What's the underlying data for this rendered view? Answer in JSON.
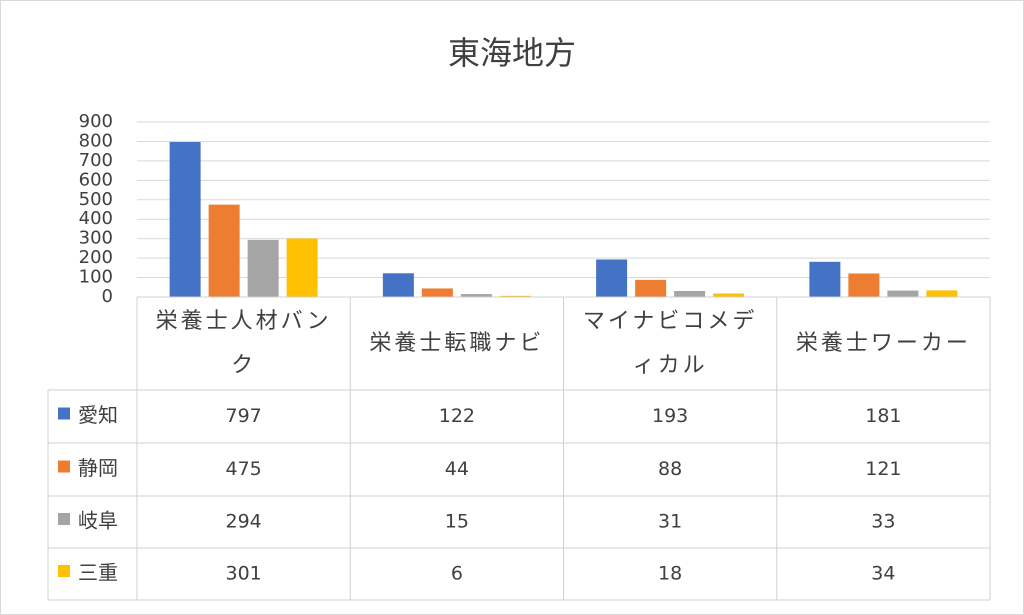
{
  "chart_data": {
    "type": "bar",
    "title": "東海地方",
    "categories": [
      "栄養士人材バンク",
      "栄養士転職ナビ",
      "マイナビコメディカル",
      "栄養士ワーカー"
    ],
    "series": [
      {
        "name": "愛知",
        "color": "#4472c4",
        "values": [
          797,
          122,
          193,
          181
        ]
      },
      {
        "name": "静岡",
        "color": "#ed7d31",
        "values": [
          475,
          44,
          88,
          121
        ]
      },
      {
        "name": "岐阜",
        "color": "#a5a5a5",
        "values": [
          294,
          15,
          31,
          33
        ]
      },
      {
        "name": "三重",
        "color": "#ffc000",
        "values": [
          301,
          6,
          18,
          34
        ]
      }
    ],
    "ylim": [
      0,
      900
    ],
    "yticks": [
      0,
      100,
      200,
      300,
      400,
      500,
      600,
      700,
      800,
      900
    ],
    "grid": true,
    "data_table": true
  }
}
